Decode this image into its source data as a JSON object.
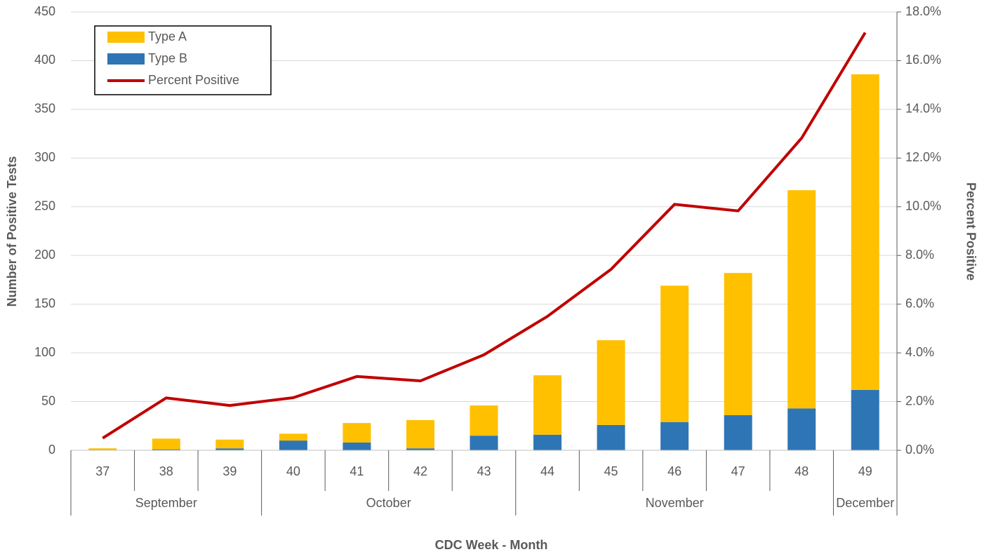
{
  "chart_data": {
    "type": "bar",
    "x_label": "CDC Week - Month",
    "y_label": "Number of Positive Tests",
    "y2_label": "Percent Positive",
    "categories": [
      "37",
      "38",
      "39",
      "40",
      "41",
      "42",
      "43",
      "44",
      "45",
      "46",
      "47",
      "48",
      "49"
    ],
    "x_groups": [
      "September",
      "September",
      "September",
      "October",
      "October",
      "October",
      "October",
      "November",
      "November",
      "November",
      "November",
      "November",
      "December"
    ],
    "series": [
      {
        "name": "Type A",
        "type": "bar",
        "color": "#ffc000",
        "values": [
          2,
          11,
          9,
          7,
          20,
          29,
          31,
          61,
          87,
          140,
          146,
          224,
          324
        ]
      },
      {
        "name": "Type B",
        "type": "bar",
        "color": "#2e75b6",
        "values": [
          0,
          1,
          2,
          10,
          8,
          2,
          15,
          16,
          26,
          29,
          36,
          43,
          62
        ]
      },
      {
        "name": "Percent Positive",
        "type": "line",
        "axis": "y2",
        "color": "#c00000",
        "values": [
          0.5,
          2.15,
          1.84,
          2.16,
          3.03,
          2.85,
          3.92,
          5.5,
          7.43,
          10.1,
          9.83,
          12.82,
          17.15
        ]
      }
    ],
    "stacked": true,
    "ylim": [
      0,
      450
    ],
    "yticks": [
      0,
      50,
      100,
      150,
      200,
      250,
      300,
      350,
      400,
      450
    ],
    "y2lim": [
      0,
      18
    ],
    "y2ticks": [
      {
        "value": 0,
        "label": "0.0%"
      },
      {
        "value": 2,
        "label": "2.0%"
      },
      {
        "value": 4,
        "label": "4.0%"
      },
      {
        "value": 6,
        "label": "6.0%"
      },
      {
        "value": 8,
        "label": "8.0%"
      },
      {
        "value": 10,
        "label": "10.0%"
      },
      {
        "value": 12,
        "label": "12.0%"
      },
      {
        "value": 14,
        "label": "14.0%"
      },
      {
        "value": 16,
        "label": "16.0%"
      },
      {
        "value": 18,
        "label": "18.0%"
      }
    ],
    "grid": true,
    "legend": "top-left"
  }
}
